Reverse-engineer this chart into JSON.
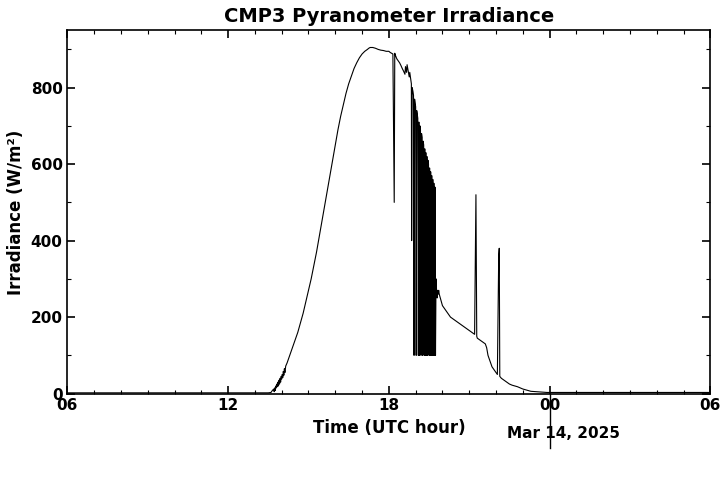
{
  "title": "CMP3 Pyranometer Irradiance",
  "xlabel": "Time (UTC hour)",
  "ylabel": "Irradiance (W/m²)",
  "date_label": "Mar 14, 2025",
  "xlim": [
    6,
    30
  ],
  "ylim": [
    0,
    950
  ],
  "xticks": [
    6,
    12,
    18,
    24,
    30
  ],
  "xticklabels": [
    "06",
    "12",
    "18",
    "00",
    "06"
  ],
  "yticks": [
    0,
    200,
    400,
    600,
    800
  ],
  "background_color": "#ffffff",
  "line_color": "#000000",
  "title_fontsize": 14,
  "label_fontsize": 12,
  "tick_fontsize": 11,
  "time_series": [
    [
      6.0,
      2
    ],
    [
      7.0,
      2
    ],
    [
      8.0,
      2
    ],
    [
      9.0,
      2
    ],
    [
      10.0,
      2
    ],
    [
      11.0,
      2
    ],
    [
      12.0,
      2
    ],
    [
      12.5,
      2
    ],
    [
      13.0,
      2
    ],
    [
      13.3,
      2
    ],
    [
      13.5,
      2
    ],
    [
      13.6,
      3
    ],
    [
      13.65,
      8
    ],
    [
      13.7,
      12
    ],
    [
      13.72,
      5
    ],
    [
      13.74,
      15
    ],
    [
      13.76,
      8
    ],
    [
      13.78,
      20
    ],
    [
      13.8,
      15
    ],
    [
      13.82,
      25
    ],
    [
      13.84,
      18
    ],
    [
      13.86,
      30
    ],
    [
      13.88,
      20
    ],
    [
      13.9,
      35
    ],
    [
      13.92,
      25
    ],
    [
      13.94,
      40
    ],
    [
      13.96,
      30
    ],
    [
      13.98,
      45
    ],
    [
      14.0,
      38
    ],
    [
      14.02,
      50
    ],
    [
      14.04,
      42
    ],
    [
      14.06,
      58
    ],
    [
      14.08,
      48
    ],
    [
      14.1,
      65
    ],
    [
      14.12,
      55
    ],
    [
      14.15,
      72
    ],
    [
      14.2,
      80
    ],
    [
      14.25,
      90
    ],
    [
      14.3,
      100
    ],
    [
      14.35,
      110
    ],
    [
      14.4,
      120
    ],
    [
      14.5,
      140
    ],
    [
      14.6,
      160
    ],
    [
      14.7,
      185
    ],
    [
      14.8,
      210
    ],
    [
      14.9,
      240
    ],
    [
      15.0,
      270
    ],
    [
      15.1,
      300
    ],
    [
      15.2,
      335
    ],
    [
      15.3,
      370
    ],
    [
      15.4,
      410
    ],
    [
      15.5,
      450
    ],
    [
      15.6,
      490
    ],
    [
      15.7,
      530
    ],
    [
      15.8,
      570
    ],
    [
      15.9,
      610
    ],
    [
      16.0,
      650
    ],
    [
      16.1,
      690
    ],
    [
      16.2,
      725
    ],
    [
      16.3,
      755
    ],
    [
      16.4,
      785
    ],
    [
      16.5,
      810
    ],
    [
      16.6,
      830
    ],
    [
      16.7,
      850
    ],
    [
      16.8,
      865
    ],
    [
      16.9,
      878
    ],
    [
      17.0,
      888
    ],
    [
      17.1,
      895
    ],
    [
      17.2,
      900
    ],
    [
      17.25,
      903
    ],
    [
      17.3,
      905
    ],
    [
      17.4,
      905
    ],
    [
      17.5,
      903
    ],
    [
      17.6,
      900
    ],
    [
      17.7,
      898
    ],
    [
      17.8,
      897
    ],
    [
      17.9,
      895
    ],
    [
      18.0,
      895
    ],
    [
      18.05,
      892
    ],
    [
      18.1,
      890
    ],
    [
      18.15,
      888
    ],
    [
      18.2,
      500
    ],
    [
      18.22,
      890
    ],
    [
      18.24,
      885
    ],
    [
      18.26,
      882
    ],
    [
      18.28,
      878
    ],
    [
      18.3,
      875
    ],
    [
      18.35,
      870
    ],
    [
      18.4,
      865
    ],
    [
      18.45,
      858
    ],
    [
      18.5,
      850
    ],
    [
      18.55,
      843
    ],
    [
      18.6,
      835
    ],
    [
      18.62,
      855
    ],
    [
      18.64,
      848
    ],
    [
      18.66,
      840
    ],
    [
      18.68,
      860
    ],
    [
      18.7,
      852
    ],
    [
      18.72,
      844
    ],
    [
      18.74,
      836
    ],
    [
      18.76,
      828
    ],
    [
      18.78,
      840
    ],
    [
      18.8,
      830
    ],
    [
      18.82,
      820
    ],
    [
      18.84,
      810
    ],
    [
      18.85,
      400
    ],
    [
      18.87,
      800
    ],
    [
      18.9,
      790
    ],
    [
      18.92,
      780
    ],
    [
      18.94,
      100
    ],
    [
      18.96,
      770
    ],
    [
      18.98,
      760
    ],
    [
      19.0,
      750
    ],
    [
      19.02,
      100
    ],
    [
      19.04,
      740
    ],
    [
      19.06,
      730
    ],
    [
      19.08,
      720
    ],
    [
      19.1,
      100
    ],
    [
      19.12,
      710
    ],
    [
      19.14,
      100
    ],
    [
      19.16,
      700
    ],
    [
      19.18,
      690
    ],
    [
      19.2,
      100
    ],
    [
      19.22,
      680
    ],
    [
      19.24,
      670
    ],
    [
      19.26,
      100
    ],
    [
      19.28,
      660
    ],
    [
      19.3,
      650
    ],
    [
      19.32,
      100
    ],
    [
      19.34,
      640
    ],
    [
      19.36,
      100
    ],
    [
      19.38,
      630
    ],
    [
      19.4,
      100
    ],
    [
      19.42,
      620
    ],
    [
      19.44,
      100
    ],
    [
      19.46,
      610
    ],
    [
      19.48,
      600
    ],
    [
      19.5,
      100
    ],
    [
      19.52,
      590
    ],
    [
      19.54,
      100
    ],
    [
      19.56,
      580
    ],
    [
      19.58,
      100
    ],
    [
      19.6,
      570
    ],
    [
      19.62,
      100
    ],
    [
      19.64,
      560
    ],
    [
      19.66,
      100
    ],
    [
      19.68,
      550
    ],
    [
      19.7,
      100
    ],
    [
      19.72,
      540
    ],
    [
      19.74,
      100
    ],
    [
      19.76,
      300
    ],
    [
      19.78,
      270
    ],
    [
      19.8,
      250
    ],
    [
      19.82,
      270
    ],
    [
      19.84,
      260
    ],
    [
      19.86,
      270
    ],
    [
      19.88,
      260
    ],
    [
      19.9,
      255
    ],
    [
      19.92,
      250
    ],
    [
      19.94,
      245
    ],
    [
      19.96,
      240
    ],
    [
      19.98,
      235
    ],
    [
      20.0,
      230
    ],
    [
      20.05,
      225
    ],
    [
      20.1,
      220
    ],
    [
      20.15,
      215
    ],
    [
      20.2,
      210
    ],
    [
      20.25,
      205
    ],
    [
      20.3,
      200
    ],
    [
      20.4,
      195
    ],
    [
      20.5,
      190
    ],
    [
      20.6,
      185
    ],
    [
      20.7,
      180
    ],
    [
      20.8,
      175
    ],
    [
      20.9,
      170
    ],
    [
      21.0,
      165
    ],
    [
      21.1,
      160
    ],
    [
      21.2,
      155
    ],
    [
      21.25,
      520
    ],
    [
      21.28,
      150
    ],
    [
      21.3,
      145
    ],
    [
      21.4,
      140
    ],
    [
      21.5,
      135
    ],
    [
      21.6,
      130
    ],
    [
      21.65,
      120
    ],
    [
      21.7,
      100
    ],
    [
      21.75,
      90
    ],
    [
      21.8,
      80
    ],
    [
      21.85,
      70
    ],
    [
      21.9,
      65
    ],
    [
      21.95,
      60
    ],
    [
      22.0,
      55
    ],
    [
      22.05,
      50
    ],
    [
      22.1,
      360
    ],
    [
      22.12,
      380
    ],
    [
      22.14,
      45
    ],
    [
      22.2,
      40
    ],
    [
      22.3,
      35
    ],
    [
      22.4,
      30
    ],
    [
      22.5,
      25
    ],
    [
      22.6,
      22
    ],
    [
      22.7,
      20
    ],
    [
      22.8,
      18
    ],
    [
      22.9,
      15
    ],
    [
      23.0,
      12
    ],
    [
      23.1,
      10
    ],
    [
      23.2,
      8
    ],
    [
      23.3,
      6
    ],
    [
      23.5,
      5
    ],
    [
      23.7,
      4
    ],
    [
      23.9,
      3
    ],
    [
      24.0,
      3
    ],
    [
      24.5,
      3
    ],
    [
      25.0,
      3
    ],
    [
      25.5,
      3
    ],
    [
      26.0,
      3
    ],
    [
      26.5,
      3
    ],
    [
      27.0,
      3
    ],
    [
      27.5,
      3
    ],
    [
      28.0,
      3
    ],
    [
      28.5,
      3
    ],
    [
      29.0,
      3
    ],
    [
      29.5,
      3
    ],
    [
      30.0,
      3
    ]
  ]
}
